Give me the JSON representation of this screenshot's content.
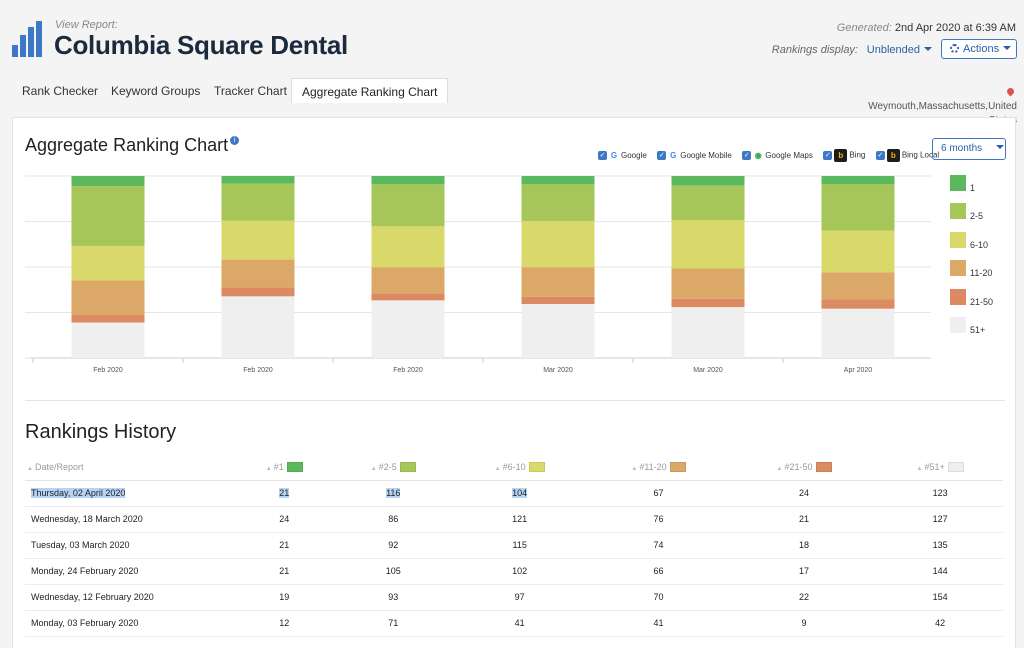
{
  "header": {
    "view_report": "View Report:",
    "title": "Columbia Square Dental",
    "generated_label": "Generated:",
    "generated_value": "2nd Apr 2020 at 6:39 AM",
    "rankings_display_label": "Rankings display:",
    "rankings_display_value": "Unblended",
    "actions_label": "Actions"
  },
  "tabs": [
    {
      "label": "Rank Checker",
      "active": false
    },
    {
      "label": "Keyword Groups",
      "active": false
    },
    {
      "label": "Tracker Chart",
      "active": false
    },
    {
      "label": "Aggregate Ranking Chart",
      "active": true
    }
  ],
  "location": "Weymouth,Massachusetts,United States",
  "chart_section": {
    "title": "Aggregate Ranking Chart",
    "period": "6 months",
    "engines": [
      {
        "label": "Google",
        "checked": true,
        "icon": "google-icon"
      },
      {
        "label": "Google Mobile",
        "checked": true,
        "icon": "google-icon"
      },
      {
        "label": "Google Maps",
        "checked": true,
        "icon": "maps-pin-icon"
      },
      {
        "label": "Bing",
        "checked": true,
        "icon": "bing-icon"
      },
      {
        "label": "Bing Local",
        "checked": true,
        "icon": "bing-icon"
      }
    ]
  },
  "chart_data": {
    "type": "bar",
    "stacked": true,
    "categories": [
      "Feb 2020",
      "Feb 2020",
      "Feb 2020",
      "Mar 2020",
      "Mar 2020",
      "Apr 2020"
    ],
    "series": [
      {
        "name": "1",
        "color": "#5cb85c",
        "values": [
          12,
          19,
          21,
          21,
          24,
          21
        ]
      },
      {
        "name": "2-5",
        "color": "#a6c65a",
        "values": [
          71,
          93,
          105,
          92,
          86,
          116
        ]
      },
      {
        "name": "6-10",
        "color": "#d9d86a",
        "values": [
          41,
          97,
          102,
          115,
          121,
          104
        ]
      },
      {
        "name": "11-20",
        "color": "#dba868",
        "values": [
          41,
          70,
          66,
          74,
          76,
          67
        ]
      },
      {
        "name": "21-50",
        "color": "#db8a62",
        "values": [
          9,
          22,
          17,
          18,
          21,
          24
        ]
      },
      {
        "name": "51+",
        "color": "#efefef",
        "values": [
          42,
          154,
          144,
          135,
          127,
          123
        ]
      }
    ],
    "legend_position": "right",
    "grid": true
  },
  "history": {
    "title": "Rankings History",
    "columns": [
      {
        "label": "Date/Report",
        "color": ""
      },
      {
        "label": "#1",
        "color": "#5cb85c"
      },
      {
        "label": "#2-5",
        "color": "#a6c65a"
      },
      {
        "label": "#6-10",
        "color": "#d9d86a"
      },
      {
        "label": "#11-20",
        "color": "#dba868"
      },
      {
        "label": "#21-50",
        "color": "#db8a62"
      },
      {
        "label": "#51+",
        "color": "#efefef"
      }
    ],
    "rows": [
      [
        "Thursday, 02 April 2020",
        "21",
        "116",
        "104",
        "67",
        "24",
        "123"
      ],
      [
        "Wednesday, 18 March 2020",
        "24",
        "86",
        "121",
        "76",
        "21",
        "127"
      ],
      [
        "Tuesday, 03 March 2020",
        "21",
        "92",
        "115",
        "74",
        "18",
        "135"
      ],
      [
        "Monday, 24 February 2020",
        "21",
        "105",
        "102",
        "66",
        "17",
        "144"
      ],
      [
        "Wednesday, 12 February 2020",
        "19",
        "93",
        "97",
        "70",
        "22",
        "154"
      ],
      [
        "Monday, 03 February 2020",
        "12",
        "71",
        "41",
        "41",
        "9",
        "42"
      ]
    ]
  }
}
